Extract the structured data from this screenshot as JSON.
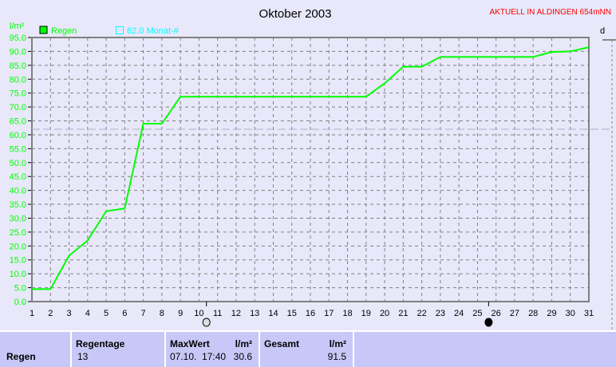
{
  "header": {
    "title": "Oktober 2003",
    "station": "AKTUELL IN ALDINGEN 654mNN",
    "right_label": "d"
  },
  "legend": {
    "series": "Regen",
    "reference": "62.0 Monat-#"
  },
  "colors": {
    "series": "#00ff00",
    "reference": "#00ffff",
    "axis": "#00ff00",
    "station": "#ff0000",
    "panel": "#c8c8f8"
  },
  "chart_data": {
    "type": "line",
    "title": "Oktober 2003",
    "ylabel": "l/m²",
    "xlabel": "",
    "ylim": [
      0,
      95
    ],
    "xlim": [
      1,
      31
    ],
    "grid": true,
    "yticks": [
      "0.0",
      "5.0",
      "10.0",
      "15.0",
      "20.0",
      "25.0",
      "30.0",
      "35.0",
      "40.0",
      "45.0",
      "50.0",
      "55.0",
      "60.0",
      "65.0",
      "70.0",
      "75.0",
      "80.0",
      "85.0",
      "90.0",
      "95.0"
    ],
    "x": [
      1,
      2,
      3,
      4,
      5,
      6,
      7,
      8,
      9,
      10,
      11,
      12,
      13,
      14,
      15,
      16,
      17,
      18,
      19,
      20,
      21,
      22,
      23,
      24,
      25,
      26,
      27,
      28,
      29,
      30,
      31
    ],
    "series": [
      {
        "name": "Regen",
        "values": [
          4.5,
          4.5,
          16.5,
          22,
          32.5,
          33.5,
          64,
          64,
          73.7,
          73.7,
          73.7,
          73.7,
          73.7,
          73.7,
          73.7,
          73.7,
          73.7,
          73.7,
          73.7,
          78.5,
          84.5,
          84.5,
          88,
          88,
          88,
          88,
          88,
          88,
          89.8,
          90,
          91.5
        ]
      }
    ],
    "reference_line": {
      "name": "Monat-#",
      "value": 62.0
    },
    "moon_phases": [
      {
        "day": 10.4,
        "phase": "full-moon"
      },
      {
        "day": 25.6,
        "phase": "new-moon"
      }
    ]
  },
  "table": {
    "row_label": "Regen",
    "regentage_header": "Regentage",
    "regentage": "13",
    "maxwert_header": "MaxWert",
    "unit": "l/m²",
    "maxwert_time": "07.10.  17:40",
    "maxwert": "30.6",
    "gesamt_header": "Gesamt",
    "gesamt": "91.5"
  }
}
